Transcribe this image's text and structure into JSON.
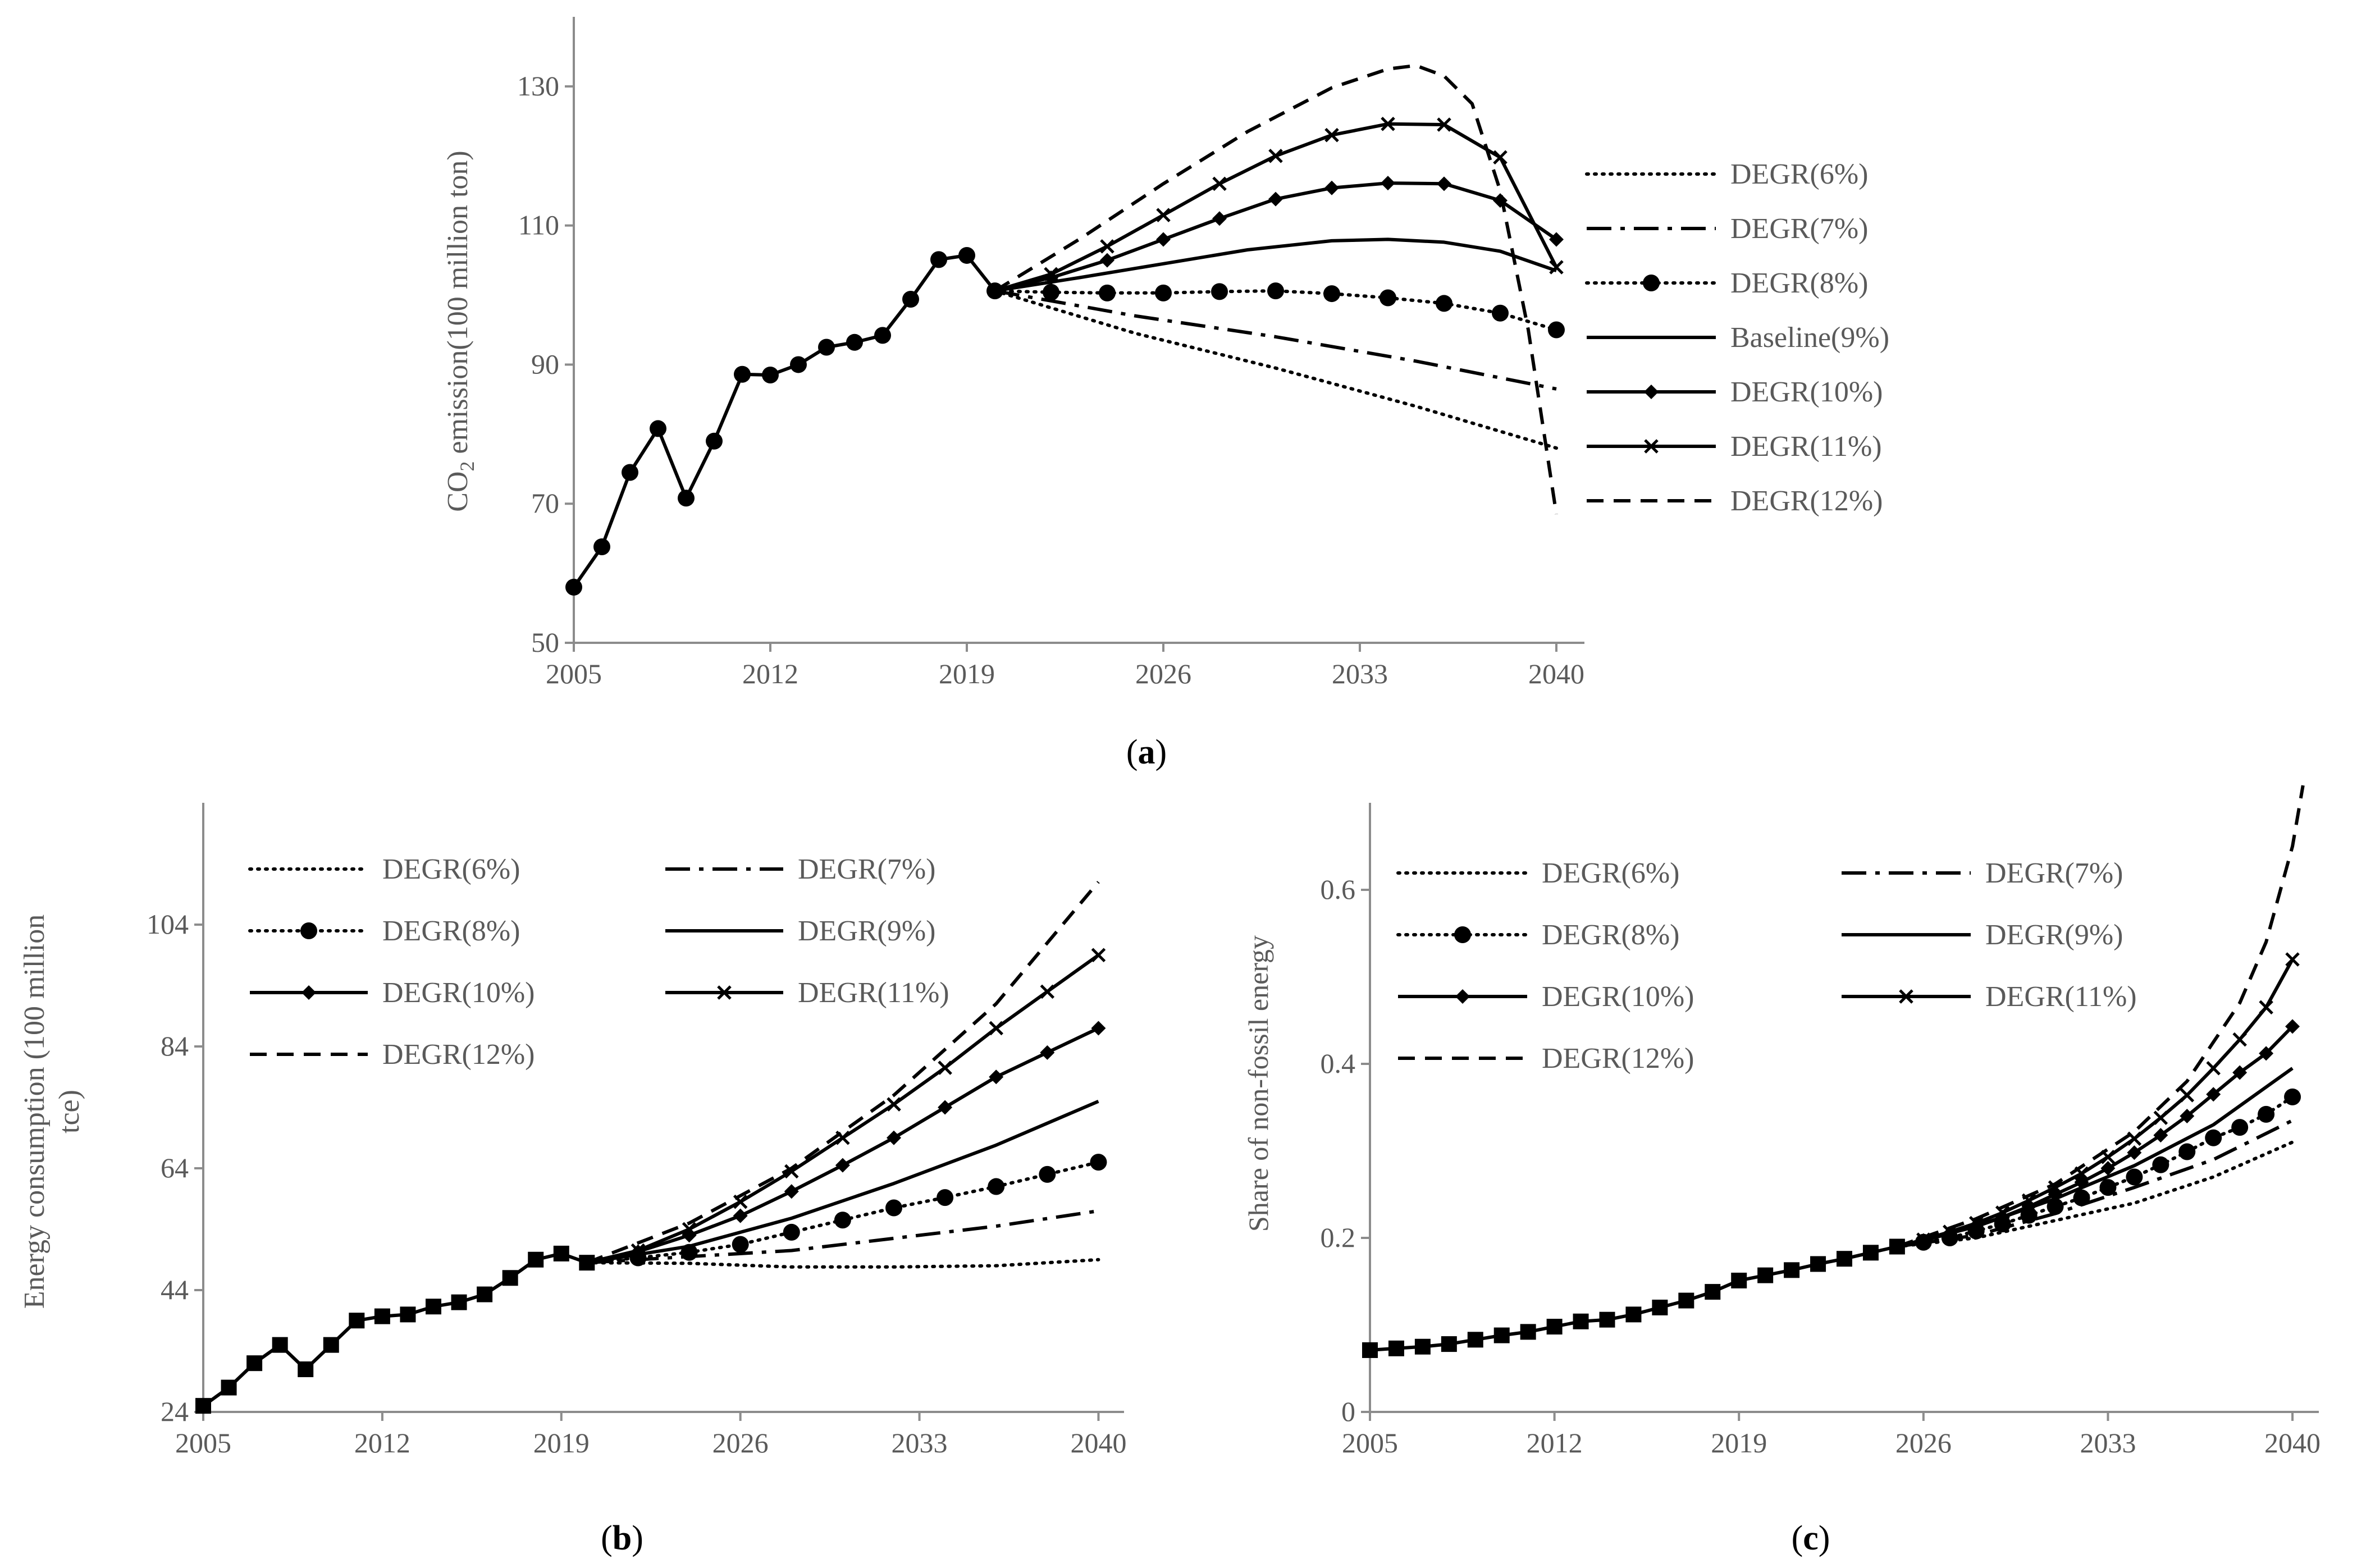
{
  "chart_data": [
    {
      "panel": "a",
      "type": "line",
      "ylabel_main": "CO",
      "ylabel_sub": "2",
      "ylabel_rest": " emission(100 million ton)",
      "xlabel": "",
      "xlim": [
        2005,
        2041
      ],
      "ylim": [
        50,
        140
      ],
      "x_ticks": [
        2005,
        2012,
        2019,
        2026,
        2033,
        2040
      ],
      "y_ticks": [
        50,
        70,
        90,
        110,
        130
      ],
      "historical": {
        "x": [
          2005,
          2006,
          2007,
          2008,
          2009,
          2010,
          2011,
          2012,
          2013,
          2014,
          2015,
          2016,
          2017,
          2018,
          2019,
          2020
        ],
        "values": [
          58,
          63.8,
          74.5,
          80.8,
          70.8,
          79,
          88.6,
          88.5,
          90,
          92.5,
          93.2,
          94.2,
          99.4,
          105.1,
          105.7,
          100.6
        ]
      },
      "series": [
        {
          "name": "DEGR(6%)",
          "style": "dotted",
          "marker": "none",
          "x": [
            2020,
            2025,
            2030,
            2035,
            2040
          ],
          "values": [
            100.6,
            94.5,
            89.5,
            84,
            78
          ]
        },
        {
          "name": "DEGR(7%)",
          "style": "dashdot",
          "marker": "none",
          "x": [
            2020,
            2025,
            2030,
            2035,
            2040
          ],
          "values": [
            100.6,
            97,
            94,
            90.5,
            86.5
          ]
        },
        {
          "name": "DEGR(8%)",
          "style": "dotted",
          "marker": "circle",
          "x": [
            2020,
            2022,
            2024,
            2026,
            2028,
            2030,
            2032,
            2034,
            2036,
            2038,
            2040
          ],
          "values": [
            100.6,
            100.4,
            100.3,
            100.3,
            100.5,
            100.6,
            100.2,
            99.6,
            98.8,
            97.4,
            95
          ]
        },
        {
          "name": "Baseline(9%)",
          "style": "solid",
          "marker": "none",
          "x": [
            2020,
            2023,
            2026,
            2029,
            2032,
            2034,
            2036,
            2038,
            2040
          ],
          "values": [
            100.6,
            102.5,
            104.5,
            106.5,
            107.8,
            108,
            107.6,
            106.3,
            103.5
          ]
        },
        {
          "name": "DEGR(10%)",
          "style": "solid",
          "marker": "diamond",
          "x": [
            2020,
            2022,
            2024,
            2026,
            2028,
            2030,
            2032,
            2034,
            2036,
            2038,
            2040
          ],
          "values": [
            100.6,
            102.5,
            105,
            108,
            111,
            113.8,
            115.4,
            116.1,
            116,
            113.6,
            108
          ]
        },
        {
          "name": "DEGR(11%)",
          "style": "solid",
          "marker": "x",
          "x": [
            2020,
            2022,
            2024,
            2026,
            2028,
            2030,
            2032,
            2034,
            2036,
            2038,
            2040
          ],
          "values": [
            100.6,
            103,
            107,
            111.5,
            116,
            120,
            123,
            124.6,
            124.5,
            119.8,
            104
          ]
        },
        {
          "name": "DEGR(12%)",
          "style": "dashed",
          "marker": "none",
          "x": [
            2020,
            2023,
            2026,
            2029,
            2032,
            2034,
            2035,
            2036,
            2037,
            2038,
            2039,
            2040
          ],
          "values": [
            100.6,
            108,
            116,
            123.5,
            129.8,
            132.5,
            133,
            131.5,
            127.5,
            115,
            95,
            68.5
          ]
        }
      ],
      "legend": [
        "DEGR(6%)",
        "DEGR(7%)",
        "DEGR(8%)",
        "Baseline(9%)",
        "DEGR(10%)",
        "DEGR(11%)",
        "DEGR(12%)"
      ],
      "legend_position": "right",
      "panel_label": "a"
    },
    {
      "panel": "b",
      "type": "line",
      "ylabel_line1": "Energy consumption (100 million",
      "ylabel_line2": "tce)",
      "xlabel": "",
      "xlim": [
        2005,
        2041
      ],
      "ylim": [
        24,
        124
      ],
      "x_ticks": [
        2005,
        2012,
        2019,
        2026,
        2033,
        2040
      ],
      "y_ticks": [
        24,
        44,
        64,
        84,
        104
      ],
      "historical": {
        "x": [
          2005,
          2006,
          2007,
          2008,
          2009,
          2010,
          2011,
          2012,
          2013,
          2014,
          2015,
          2016,
          2017,
          2018,
          2019,
          2020
        ],
        "values": [
          25,
          28,
          32,
          35,
          31,
          35,
          39,
          39.7,
          40,
          41.3,
          42,
          43.3,
          46,
          49,
          50,
          48.5
        ]
      },
      "series": [
        {
          "name": "DEGR(6%)",
          "style": "dotted",
          "marker": "none",
          "x": [
            2020,
            2024,
            2028,
            2032,
            2036,
            2040
          ],
          "values": [
            48.5,
            48.4,
            47.8,
            47.8,
            48,
            49
          ]
        },
        {
          "name": "DEGR(7%)",
          "style": "dashdot",
          "marker": "none",
          "x": [
            2020,
            2024,
            2028,
            2032,
            2036,
            2040
          ],
          "values": [
            48.5,
            49.5,
            50.5,
            52.5,
            54.5,
            57
          ]
        },
        {
          "name": "DEGR(8%)",
          "style": "dotted",
          "marker": "circle",
          "x": [
            2020,
            2022,
            2024,
            2026,
            2028,
            2030,
            2032,
            2034,
            2036,
            2038,
            2040
          ],
          "values": [
            48.5,
            49.3,
            50.2,
            51.5,
            53.5,
            55.5,
            57.5,
            59.2,
            61,
            63,
            65
          ]
        },
        {
          "name": "DEGR(9%)",
          "style": "solid",
          "marker": "none",
          "x": [
            2020,
            2024,
            2028,
            2032,
            2036,
            2040
          ],
          "values": [
            48.5,
            51.2,
            55.8,
            61.5,
            67.8,
            75
          ]
        },
        {
          "name": "DEGR(10%)",
          "style": "solid",
          "marker": "diamond",
          "x": [
            2020,
            2022,
            2024,
            2026,
            2028,
            2030,
            2032,
            2034,
            2036,
            2038,
            2040
          ],
          "values": [
            48.5,
            50.3,
            53,
            56.2,
            60.2,
            64.5,
            69,
            74,
            79,
            83,
            87
          ]
        },
        {
          "name": "DEGR(11%)",
          "style": "solid",
          "marker": "x",
          "x": [
            2020,
            2022,
            2024,
            2026,
            2028,
            2030,
            2032,
            2034,
            2036,
            2038,
            2040
          ],
          "values": [
            48.5,
            50.5,
            54,
            58.5,
            63.5,
            69,
            74.5,
            80.5,
            87,
            93,
            99
          ]
        },
        {
          "name": "DEGR(12%)",
          "style": "dashed",
          "marker": "none",
          "x": [
            2020,
            2024,
            2028,
            2032,
            2036,
            2040
          ],
          "values": [
            48.5,
            55,
            64,
            76,
            91,
            111
          ]
        }
      ],
      "legend": [
        "DEGR(6%)",
        "DEGR(7%)",
        "DEGR(8%)",
        "DEGR(9%)",
        "DEGR(10%)",
        "DEGR(11%)",
        "DEGR(12%)"
      ],
      "legend_position": "top-left",
      "panel_label": "b"
    },
    {
      "panel": "c",
      "type": "line",
      "ylabel": "Share of non-fossil energy",
      "xlabel": "",
      "xlim": [
        2005,
        2041
      ],
      "ylim": [
        0,
        0.7
      ],
      "x_ticks": [
        2005,
        2012,
        2019,
        2026,
        2033,
        2040
      ],
      "y_ticks": [
        "0",
        "0.2",
        "0.4",
        "0.6"
      ],
      "historical": {
        "x": [
          2005,
          2006,
          2007,
          2008,
          2009,
          2010,
          2011,
          2012,
          2013,
          2014,
          2015,
          2016,
          2017,
          2018,
          2019,
          2020,
          2021,
          2022,
          2023,
          2024,
          2025
        ],
        "values": [
          0.071,
          0.073,
          0.075,
          0.078,
          0.083,
          0.088,
          0.092,
          0.098,
          0.104,
          0.106,
          0.112,
          0.12,
          0.128,
          0.138,
          0.151,
          0.157,
          0.163,
          0.17,
          0.176,
          0.183,
          0.19
        ]
      },
      "series": [
        {
          "name": "DEGR(6%)",
          "style": "dotted",
          "marker": "none",
          "x": [
            2025,
            2028,
            2031,
            2034,
            2037,
            2040
          ],
          "values": [
            0.19,
            0.2,
            0.22,
            0.24,
            0.27,
            0.31
          ]
        },
        {
          "name": "DEGR(7%)",
          "style": "dashdot",
          "marker": "none",
          "x": [
            2025,
            2028,
            2031,
            2034,
            2037,
            2040
          ],
          "values": [
            0.19,
            0.203,
            0.228,
            0.258,
            0.29,
            0.335
          ]
        },
        {
          "name": "DEGR(8%)",
          "style": "dotted",
          "marker": "circle",
          "x": [
            2025,
            2026,
            2027,
            2028,
            2029,
            2030,
            2031,
            2032,
            2033,
            2034,
            2035,
            2036,
            2037,
            2038,
            2039,
            2040
          ],
          "values": [
            0.19,
            0.195,
            0.2,
            0.208,
            0.216,
            0.226,
            0.236,
            0.246,
            0.258,
            0.27,
            0.284,
            0.299,
            0.315,
            0.327,
            0.342,
            0.362
          ]
        },
        {
          "name": "DEGR(9%)",
          "style": "solid",
          "marker": "none",
          "x": [
            2025,
            2028,
            2031,
            2034,
            2037,
            2040
          ],
          "values": [
            0.19,
            0.213,
            0.245,
            0.283,
            0.33,
            0.395
          ]
        },
        {
          "name": "DEGR(10%)",
          "style": "solid",
          "marker": "diamond",
          "x": [
            2025,
            2026,
            2027,
            2028,
            2029,
            2030,
            2031,
            2032,
            2033,
            2034,
            2035,
            2036,
            2037,
            2038,
            2039,
            2040
          ],
          "values": [
            0.19,
            0.197,
            0.205,
            0.214,
            0.224,
            0.236,
            0.25,
            0.264,
            0.28,
            0.298,
            0.318,
            0.34,
            0.365,
            0.39,
            0.412,
            0.443
          ]
        },
        {
          "name": "DEGR(11%)",
          "style": "solid",
          "marker": "x",
          "x": [
            2025,
            2026,
            2027,
            2028,
            2029,
            2030,
            2031,
            2032,
            2033,
            2034,
            2035,
            2036,
            2037,
            2038,
            2039,
            2040
          ],
          "values": [
            0.19,
            0.198,
            0.207,
            0.217,
            0.229,
            0.243,
            0.258,
            0.274,
            0.293,
            0.314,
            0.338,
            0.364,
            0.395,
            0.428,
            0.465,
            0.52
          ]
        },
        {
          "name": "DEGR(12%)",
          "style": "dashed",
          "marker": "none",
          "x": [
            2025,
            2028,
            2031,
            2034,
            2036,
            2038,
            2039,
            2040,
            2040.4
          ],
          "values": [
            0.19,
            0.222,
            0.262,
            0.322,
            0.38,
            0.47,
            0.54,
            0.65,
            0.72
          ]
        }
      ],
      "legend": [
        "DEGR(6%)",
        "DEGR(7%)",
        "DEGR(8%)",
        "DEGR(9%)",
        "DEGR(10%)",
        "DEGR(11%)",
        "DEGR(12%)"
      ],
      "legend_position": "top-left",
      "panel_label": "c"
    }
  ],
  "colors": {
    "axis": "#8c8c8c",
    "line": "#000000",
    "text": "#5a5a5a",
    "background": "#ffffff"
  }
}
